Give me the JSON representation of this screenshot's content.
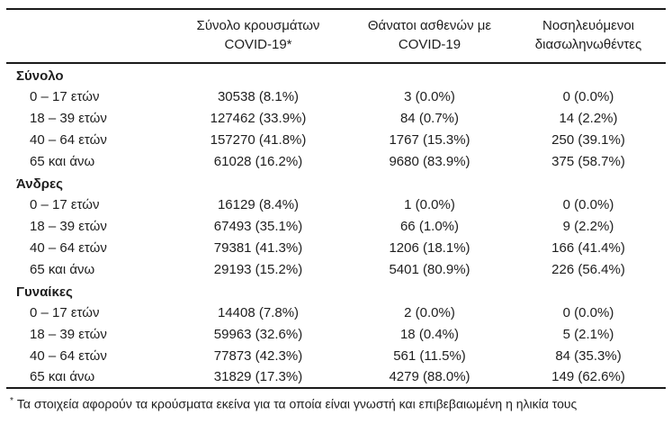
{
  "colors": {
    "background": "#ffffff",
    "text": "#1e1e1e",
    "rule": "#1a1a1a"
  },
  "table": {
    "columns": [
      {
        "line1": "Σύνολο κρουσμάτων",
        "line2": "COVID-19*"
      },
      {
        "line1": "Θάνατοι ασθενών με",
        "line2": "COVID-19"
      },
      {
        "line1": "Νοσηλευόμενοι",
        "line2": "διασωληνωθέντες"
      }
    ],
    "sections": [
      {
        "title": "Σύνολο",
        "rows": [
          {
            "label": "0 – 17 ετών",
            "cases": "30538 (8.1%)",
            "deaths": "3 (0.0%)",
            "intubated": "0 (0.0%)"
          },
          {
            "label": "18 – 39 ετών",
            "cases": "127462 (33.9%)",
            "deaths": "84 (0.7%)",
            "intubated": "14 (2.2%)"
          },
          {
            "label": "40 – 64 ετών",
            "cases": "157270 (41.8%)",
            "deaths": "1767 (15.3%)",
            "intubated": "250 (39.1%)"
          },
          {
            "label": "65 και άνω",
            "cases": "61028 (16.2%)",
            "deaths": "9680 (83.9%)",
            "intubated": "375 (58.7%)"
          }
        ]
      },
      {
        "title": "Άνδρες",
        "rows": [
          {
            "label": "0 – 17 ετών",
            "cases": "16129 (8.4%)",
            "deaths": "1 (0.0%)",
            "intubated": "0 (0.0%)"
          },
          {
            "label": "18 – 39 ετών",
            "cases": "67493 (35.1%)",
            "deaths": "66 (1.0%)",
            "intubated": "9 (2.2%)"
          },
          {
            "label": "40 – 64 ετών",
            "cases": "79381 (41.3%)",
            "deaths": "1206 (18.1%)",
            "intubated": "166 (41.4%)"
          },
          {
            "label": "65 και άνω",
            "cases": "29193 (15.2%)",
            "deaths": "5401 (80.9%)",
            "intubated": "226 (56.4%)"
          }
        ]
      },
      {
        "title": "Γυναίκες",
        "rows": [
          {
            "label": "0 – 17 ετών",
            "cases": "14408 (7.8%)",
            "deaths": "2 (0.0%)",
            "intubated": "0 (0.0%)"
          },
          {
            "label": "18 – 39 ετών",
            "cases": "59963 (32.6%)",
            "deaths": "18 (0.4%)",
            "intubated": "5 (2.1%)"
          },
          {
            "label": "40 – 64 ετών",
            "cases": "77873 (42.3%)",
            "deaths": "561 (11.5%)",
            "intubated": "84 (35.3%)"
          },
          {
            "label": "65 και άνω",
            "cases": "31829 (17.3%)",
            "deaths": "4279 (88.0%)",
            "intubated": "149 (62.6%)"
          }
        ]
      }
    ],
    "footnote": {
      "marker": "*",
      "text": "Τα στοιχεία αφορούν τα κρούσματα εκείνα για τα οποία είναι γνωστή και επιβεβαιωμένη η ηλικία τους"
    }
  }
}
